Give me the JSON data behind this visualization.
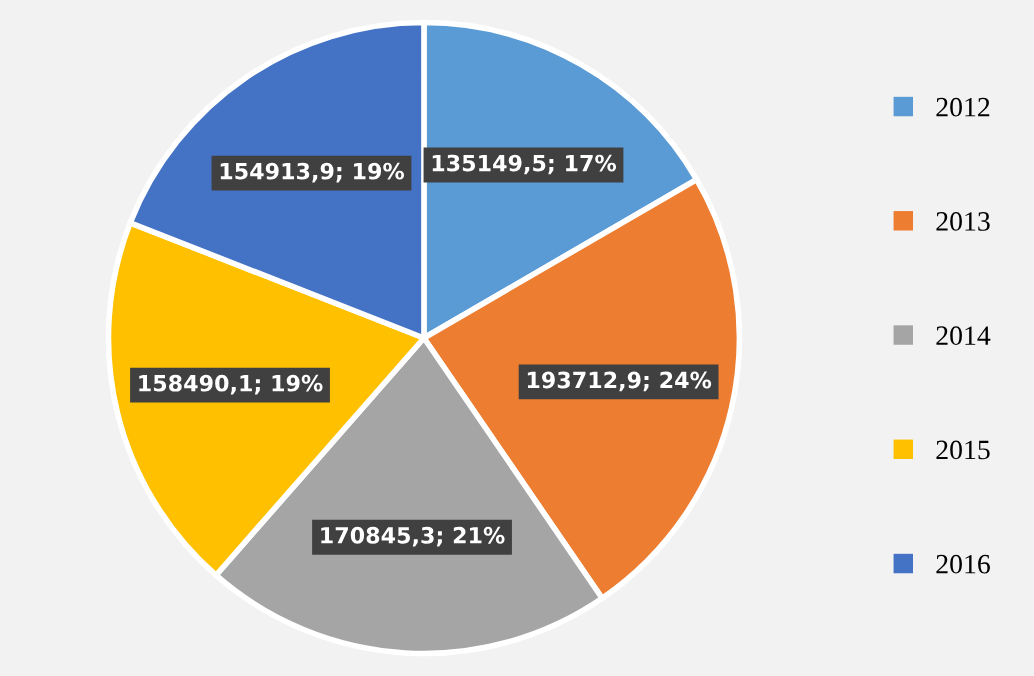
{
  "chart_data": {
    "type": "pie",
    "categories": [
      "2012",
      "2013",
      "2014",
      "2015",
      "2016"
    ],
    "values": [
      135149.5,
      193712.9,
      170845.3,
      158490.1,
      154913.9
    ],
    "colors": [
      "#5b9bd5",
      "#ed7d31",
      "#a5a5a5",
      "#ffc000",
      "#4472c4"
    ],
    "value_labels": [
      "135149,5; 17%",
      "193712,9; 24%",
      "170845,3; 21%",
      "158490,1; 19%",
      "154913,9; 19%"
    ],
    "legend": "right"
  }
}
